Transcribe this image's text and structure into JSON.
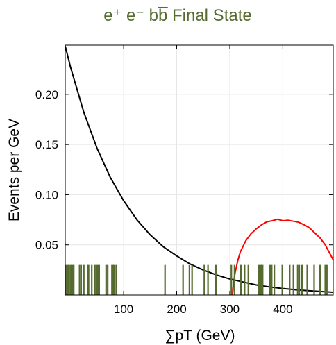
{
  "chart_data": {
    "type": "line",
    "title": "e⁺ e⁻ bb̅ Final State",
    "xlabel": "∑pT  (GeV)",
    "ylabel": "Events per GeV",
    "xlim": [
      -10,
      495
    ],
    "ylim": [
      0.0,
      0.249
    ],
    "xticks": [
      100,
      200,
      300,
      400
    ],
    "yticks": [
      0.05,
      0.1,
      0.15,
      0.2
    ],
    "ytick_labels": [
      "0.05",
      "0.10",
      "0.15",
      "0.20"
    ],
    "grid": true,
    "series": [
      {
        "color": "#000000",
        "style": "line",
        "x": [
          -10,
          0,
          25,
          50,
          75,
          100,
          125,
          150,
          175,
          200,
          225,
          250,
          275,
          300,
          325,
          350,
          375,
          400,
          425,
          450,
          475,
          495
        ],
        "y": [
          0.248,
          0.227,
          0.182,
          0.146,
          0.117,
          0.094,
          0.075,
          0.06,
          0.048,
          0.039,
          0.031,
          0.025,
          0.02,
          0.016,
          0.013,
          0.01,
          0.008,
          0.0065,
          0.0052,
          0.0042,
          0.0034,
          0.0028
        ]
      },
      {
        "color": "#ff0000",
        "style": "line",
        "x": [
          305,
          307,
          310,
          315,
          320,
          330,
          340,
          350,
          360,
          370,
          380,
          390,
          400,
          410,
          420,
          430,
          440,
          450,
          460,
          470,
          480,
          490,
          495
        ],
        "y": [
          0.0,
          0.012,
          0.022,
          0.034,
          0.043,
          0.054,
          0.061,
          0.066,
          0.07,
          0.073,
          0.074,
          0.0755,
          0.074,
          0.0745,
          0.0735,
          0.0725,
          0.07,
          0.067,
          0.062,
          0.057,
          0.05,
          0.04,
          0.035
        ]
      },
      {
        "color": "#556b2f",
        "style": "rug",
        "rug_height": 0.03,
        "x": [
          -8,
          -5,
          -3,
          0,
          2,
          4,
          6,
          17,
          20,
          25,
          32,
          34,
          40,
          46,
          50,
          52,
          54,
          67,
          70,
          78,
          80,
          82,
          86,
          178,
          212,
          224,
          229,
          252,
          259,
          274,
          303,
          309,
          321,
          328,
          335,
          355,
          359,
          360,
          362,
          376,
          379,
          384,
          399,
          413,
          420,
          428,
          431,
          436,
          446,
          459,
          470,
          480,
          483
        ]
      }
    ]
  }
}
